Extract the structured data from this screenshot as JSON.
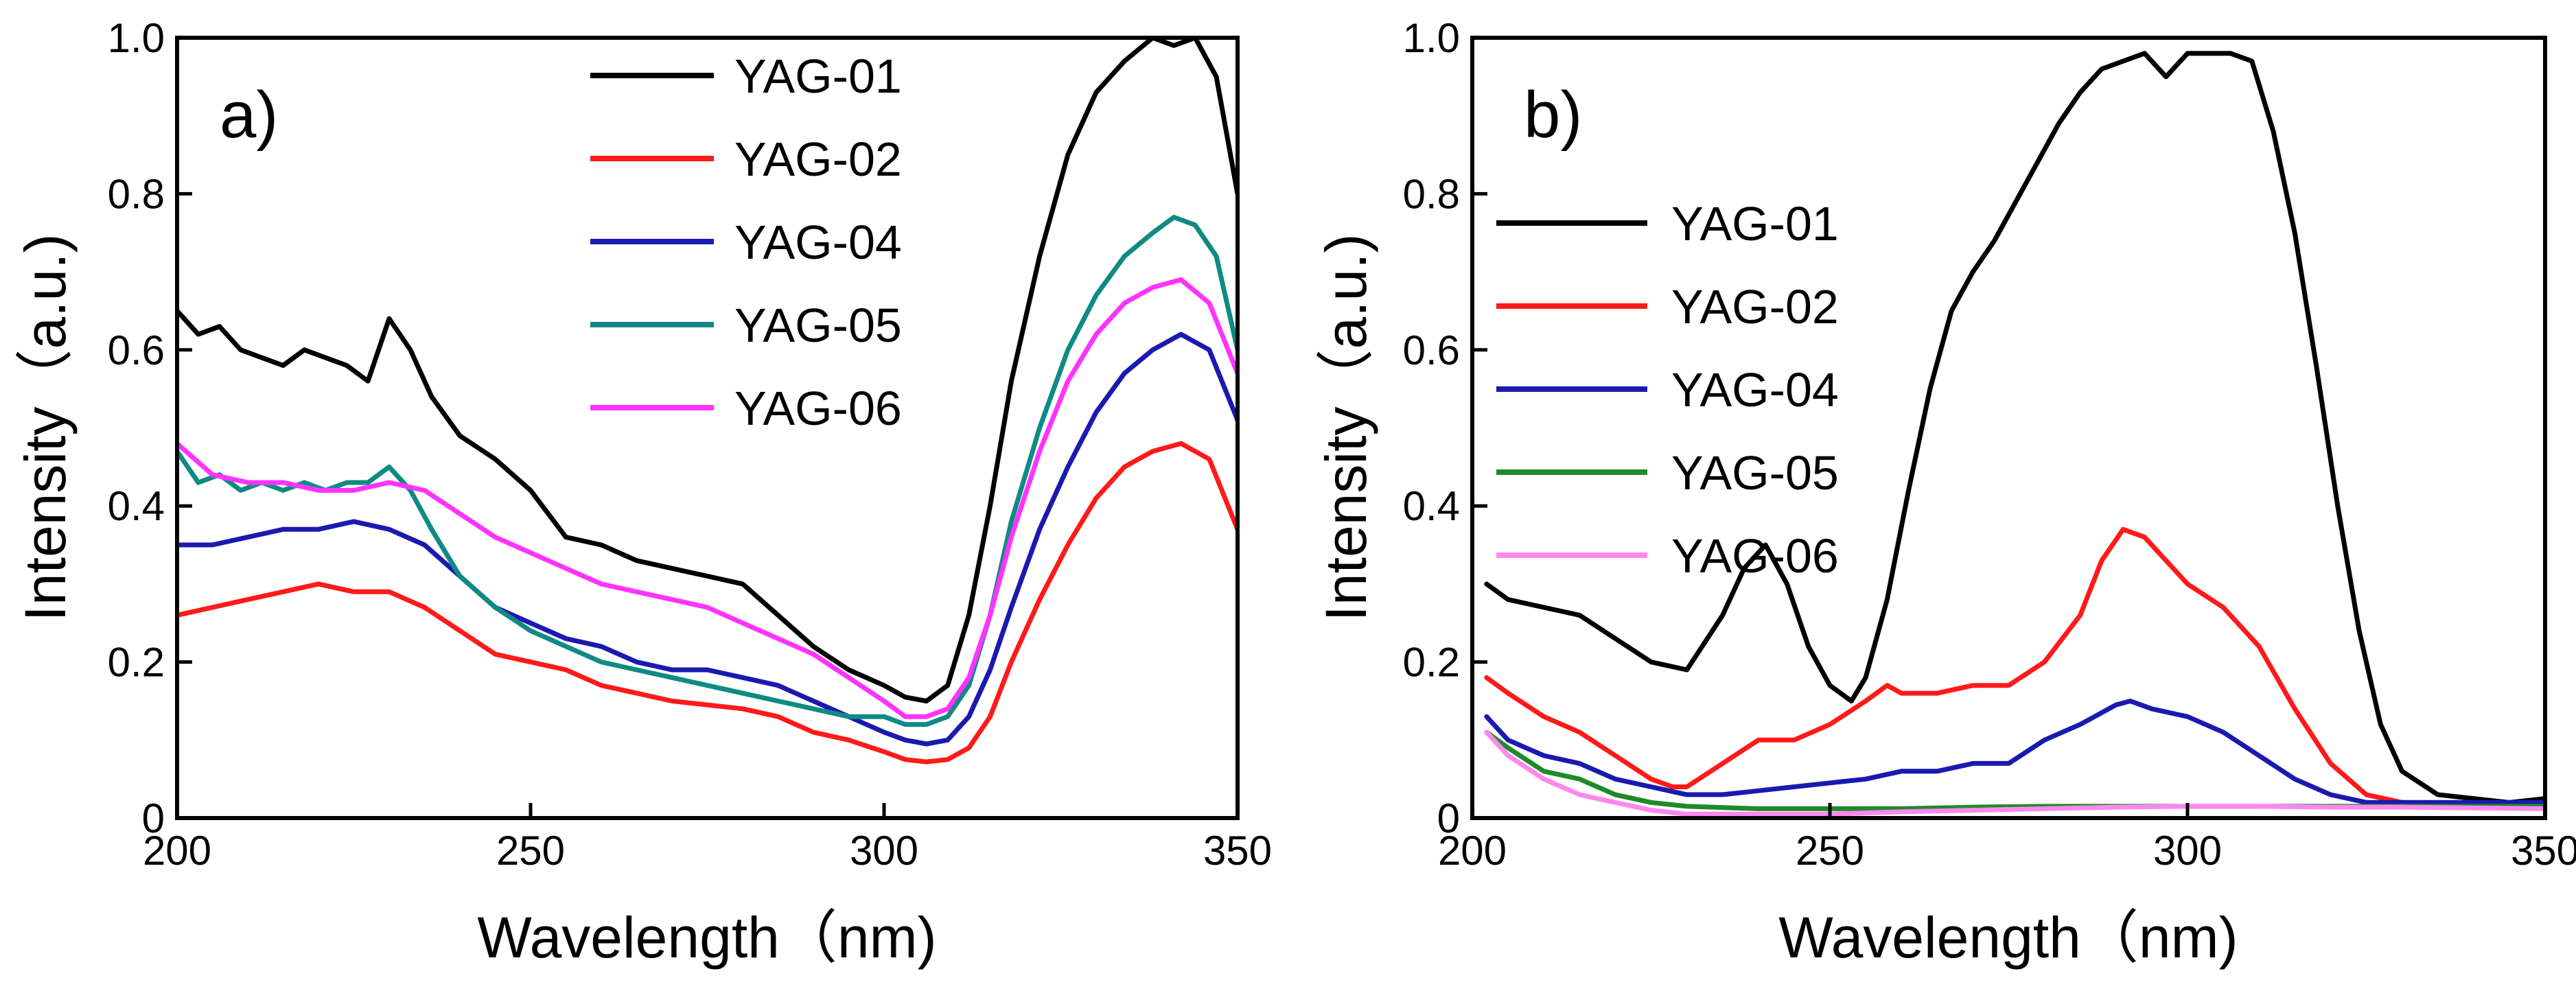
{
  "chart_data": [
    {
      "type": "line",
      "panel_label": "a)",
      "xlabel": "Wavelength（nm)",
      "ylabel": "Intensity（a.u.)",
      "xlim": [
        200,
        350
      ],
      "ylim": [
        0,
        1.0
      ],
      "xticks": [
        200,
        250,
        300,
        350
      ],
      "xtick_labels": [
        "200",
        "250",
        "300",
        "350"
      ],
      "yticks": [
        0,
        0.2,
        0.4,
        0.6,
        0.8,
        1.0
      ],
      "ytick_labels": [
        "0",
        "0.2",
        "0.4",
        "0.6",
        "0.8",
        "1.0"
      ],
      "grid": false,
      "legend_position": "top-center",
      "series": [
        {
          "name": "YAG-01",
          "color": "#000000",
          "x": [
            200,
            203,
            206,
            209,
            212,
            215,
            218,
            221,
            224,
            227,
            230,
            233,
            236,
            240,
            245,
            250,
            255,
            260,
            265,
            270,
            275,
            280,
            285,
            290,
            295,
            300,
            303,
            306,
            309,
            312,
            315,
            318,
            322,
            326,
            330,
            334,
            338,
            341,
            344,
            347,
            350
          ],
          "y": [
            0.65,
            0.62,
            0.63,
            0.6,
            0.59,
            0.58,
            0.6,
            0.59,
            0.58,
            0.56,
            0.64,
            0.6,
            0.54,
            0.49,
            0.46,
            0.42,
            0.36,
            0.35,
            0.33,
            0.32,
            0.31,
            0.3,
            0.26,
            0.22,
            0.19,
            0.17,
            0.155,
            0.15,
            0.17,
            0.26,
            0.4,
            0.56,
            0.72,
            0.85,
            0.93,
            0.97,
            1.0,
            0.99,
            1.0,
            0.95,
            0.8
          ]
        },
        {
          "name": "YAG-02",
          "color": "#ff1a1a",
          "x": [
            200,
            205,
            210,
            215,
            220,
            225,
            230,
            235,
            240,
            245,
            250,
            255,
            260,
            265,
            270,
            275,
            280,
            285,
            290,
            295,
            300,
            303,
            306,
            309,
            312,
            315,
            318,
            322,
            326,
            330,
            334,
            338,
            342,
            346,
            350
          ],
          "y": [
            0.26,
            0.27,
            0.28,
            0.29,
            0.3,
            0.29,
            0.29,
            0.27,
            0.24,
            0.21,
            0.2,
            0.19,
            0.17,
            0.16,
            0.15,
            0.145,
            0.14,
            0.13,
            0.11,
            0.1,
            0.085,
            0.075,
            0.072,
            0.075,
            0.09,
            0.13,
            0.2,
            0.28,
            0.35,
            0.41,
            0.45,
            0.47,
            0.48,
            0.46,
            0.37
          ]
        },
        {
          "name": "YAG-04",
          "color": "#1a1ab0",
          "x": [
            200,
            205,
            210,
            215,
            220,
            225,
            230,
            235,
            240,
            245,
            250,
            255,
            260,
            265,
            270,
            275,
            280,
            285,
            290,
            295,
            300,
            303,
            306,
            309,
            312,
            315,
            318,
            322,
            326,
            330,
            334,
            338,
            342,
            346,
            350
          ],
          "y": [
            0.35,
            0.35,
            0.36,
            0.37,
            0.37,
            0.38,
            0.37,
            0.35,
            0.31,
            0.27,
            0.25,
            0.23,
            0.22,
            0.2,
            0.19,
            0.19,
            0.18,
            0.17,
            0.15,
            0.13,
            0.11,
            0.1,
            0.095,
            0.1,
            0.13,
            0.19,
            0.27,
            0.37,
            0.45,
            0.52,
            0.57,
            0.6,
            0.62,
            0.6,
            0.51
          ]
        },
        {
          "name": "YAG-05",
          "color": "#0f8a84",
          "x": [
            200,
            203,
            206,
            209,
            212,
            215,
            218,
            221,
            224,
            227,
            230,
            233,
            236,
            240,
            245,
            250,
            255,
            260,
            265,
            270,
            275,
            280,
            285,
            290,
            295,
            300,
            303,
            306,
            309,
            312,
            315,
            318,
            322,
            326,
            330,
            334,
            338,
            341,
            344,
            347,
            350
          ],
          "y": [
            0.47,
            0.43,
            0.44,
            0.42,
            0.43,
            0.42,
            0.43,
            0.42,
            0.43,
            0.43,
            0.45,
            0.42,
            0.37,
            0.31,
            0.27,
            0.24,
            0.22,
            0.2,
            0.19,
            0.18,
            0.17,
            0.16,
            0.15,
            0.14,
            0.13,
            0.13,
            0.12,
            0.12,
            0.13,
            0.17,
            0.26,
            0.38,
            0.5,
            0.6,
            0.67,
            0.72,
            0.75,
            0.77,
            0.76,
            0.72,
            0.6
          ]
        },
        {
          "name": "YAG-06",
          "color": "#ff33ff",
          "x": [
            200,
            205,
            210,
            215,
            220,
            225,
            230,
            235,
            240,
            245,
            250,
            255,
            260,
            265,
            270,
            275,
            280,
            285,
            290,
            295,
            300,
            303,
            306,
            309,
            312,
            315,
            318,
            322,
            326,
            330,
            334,
            338,
            342,
            346,
            350
          ],
          "y": [
            0.48,
            0.44,
            0.43,
            0.43,
            0.42,
            0.42,
            0.43,
            0.42,
            0.39,
            0.36,
            0.34,
            0.32,
            0.3,
            0.29,
            0.28,
            0.27,
            0.25,
            0.23,
            0.21,
            0.18,
            0.15,
            0.13,
            0.13,
            0.14,
            0.18,
            0.26,
            0.36,
            0.47,
            0.56,
            0.62,
            0.66,
            0.68,
            0.69,
            0.66,
            0.57
          ]
        }
      ]
    },
    {
      "type": "line",
      "panel_label": "b)",
      "xlabel": "Wavelength（nm)",
      "ylabel": "Intensity（a.u.)",
      "xlim": [
        200,
        350
      ],
      "ylim": [
        0,
        1.0
      ],
      "xticks": [
        200,
        250,
        300,
        350
      ],
      "xtick_labels": [
        "200",
        "250",
        "300",
        "350"
      ],
      "yticks": [
        0,
        0.2,
        0.4,
        0.6,
        0.8,
        1.0
      ],
      "ytick_labels": [
        "0",
        "0.2",
        "0.4",
        "0.6",
        "0.8",
        "1.0"
      ],
      "grid": false,
      "legend_position": "top-left",
      "series": [
        {
          "name": "YAG-01",
          "color": "#000000",
          "x": [
            202,
            205,
            210,
            215,
            220,
            225,
            230,
            235,
            238,
            241,
            244,
            247,
            250,
            253,
            255,
            258,
            261,
            264,
            267,
            270,
            273,
            276,
            279,
            282,
            285,
            288,
            291,
            294,
            297,
            300,
            303,
            306,
            309,
            312,
            315,
            318,
            321,
            324,
            327,
            330,
            335,
            340,
            345,
            350
          ],
          "y": [
            0.3,
            0.28,
            0.27,
            0.26,
            0.23,
            0.2,
            0.19,
            0.26,
            0.32,
            0.35,
            0.3,
            0.22,
            0.17,
            0.15,
            0.18,
            0.28,
            0.42,
            0.55,
            0.65,
            0.7,
            0.74,
            0.79,
            0.84,
            0.89,
            0.93,
            0.96,
            0.97,
            0.98,
            0.95,
            0.98,
            0.98,
            0.98,
            0.97,
            0.88,
            0.75,
            0.58,
            0.4,
            0.24,
            0.12,
            0.06,
            0.03,
            0.025,
            0.02,
            0.025
          ]
        },
        {
          "name": "YAG-02",
          "color": "#ff1a1a",
          "x": [
            202,
            205,
            210,
            215,
            220,
            225,
            228,
            230,
            235,
            240,
            245,
            250,
            255,
            258,
            260,
            265,
            270,
            275,
            280,
            285,
            288,
            291,
            294,
            297,
            300,
            305,
            310,
            315,
            320,
            325,
            330,
            340,
            350
          ],
          "y": [
            0.18,
            0.16,
            0.13,
            0.11,
            0.08,
            0.05,
            0.04,
            0.04,
            0.07,
            0.1,
            0.1,
            0.12,
            0.15,
            0.17,
            0.16,
            0.16,
            0.17,
            0.17,
            0.2,
            0.26,
            0.33,
            0.37,
            0.36,
            0.33,
            0.3,
            0.27,
            0.22,
            0.14,
            0.07,
            0.03,
            0.02,
            0.015,
            0.02
          ]
        },
        {
          "name": "YAG-04",
          "color": "#1a1ab0",
          "x": [
            202,
            205,
            210,
            215,
            220,
            225,
            230,
            235,
            240,
            245,
            250,
            255,
            260,
            265,
            270,
            275,
            280,
            285,
            290,
            292,
            295,
            300,
            305,
            310,
            315,
            320,
            325,
            330,
            340,
            350
          ],
          "y": [
            0.13,
            0.1,
            0.08,
            0.07,
            0.05,
            0.04,
            0.03,
            0.03,
            0.035,
            0.04,
            0.045,
            0.05,
            0.06,
            0.06,
            0.07,
            0.07,
            0.1,
            0.12,
            0.145,
            0.15,
            0.14,
            0.13,
            0.11,
            0.08,
            0.05,
            0.03,
            0.02,
            0.02,
            0.02,
            0.02
          ]
        },
        {
          "name": "YAG-05",
          "color": "#1f8a2a",
          "x": [
            202,
            205,
            210,
            215,
            220,
            225,
            230,
            240,
            250,
            260,
            270,
            280,
            290,
            300,
            310,
            320,
            330,
            340,
            350
          ],
          "y": [
            0.11,
            0.09,
            0.06,
            0.05,
            0.03,
            0.02,
            0.015,
            0.012,
            0.012,
            0.012,
            0.014,
            0.015,
            0.015,
            0.015,
            0.015,
            0.015,
            0.015,
            0.015,
            0.015
          ]
        },
        {
          "name": "YAG-06",
          "color": "#ff88ee",
          "x": [
            202,
            205,
            210,
            215,
            220,
            225,
            230,
            240,
            250,
            260,
            270,
            280,
            290,
            300,
            310,
            320,
            330,
            340,
            350
          ],
          "y": [
            0.11,
            0.08,
            0.05,
            0.03,
            0.02,
            0.01,
            0.005,
            0.005,
            0.005,
            0.008,
            0.01,
            0.012,
            0.014,
            0.015,
            0.015,
            0.014,
            0.014,
            0.013,
            0.012
          ]
        }
      ]
    }
  ]
}
